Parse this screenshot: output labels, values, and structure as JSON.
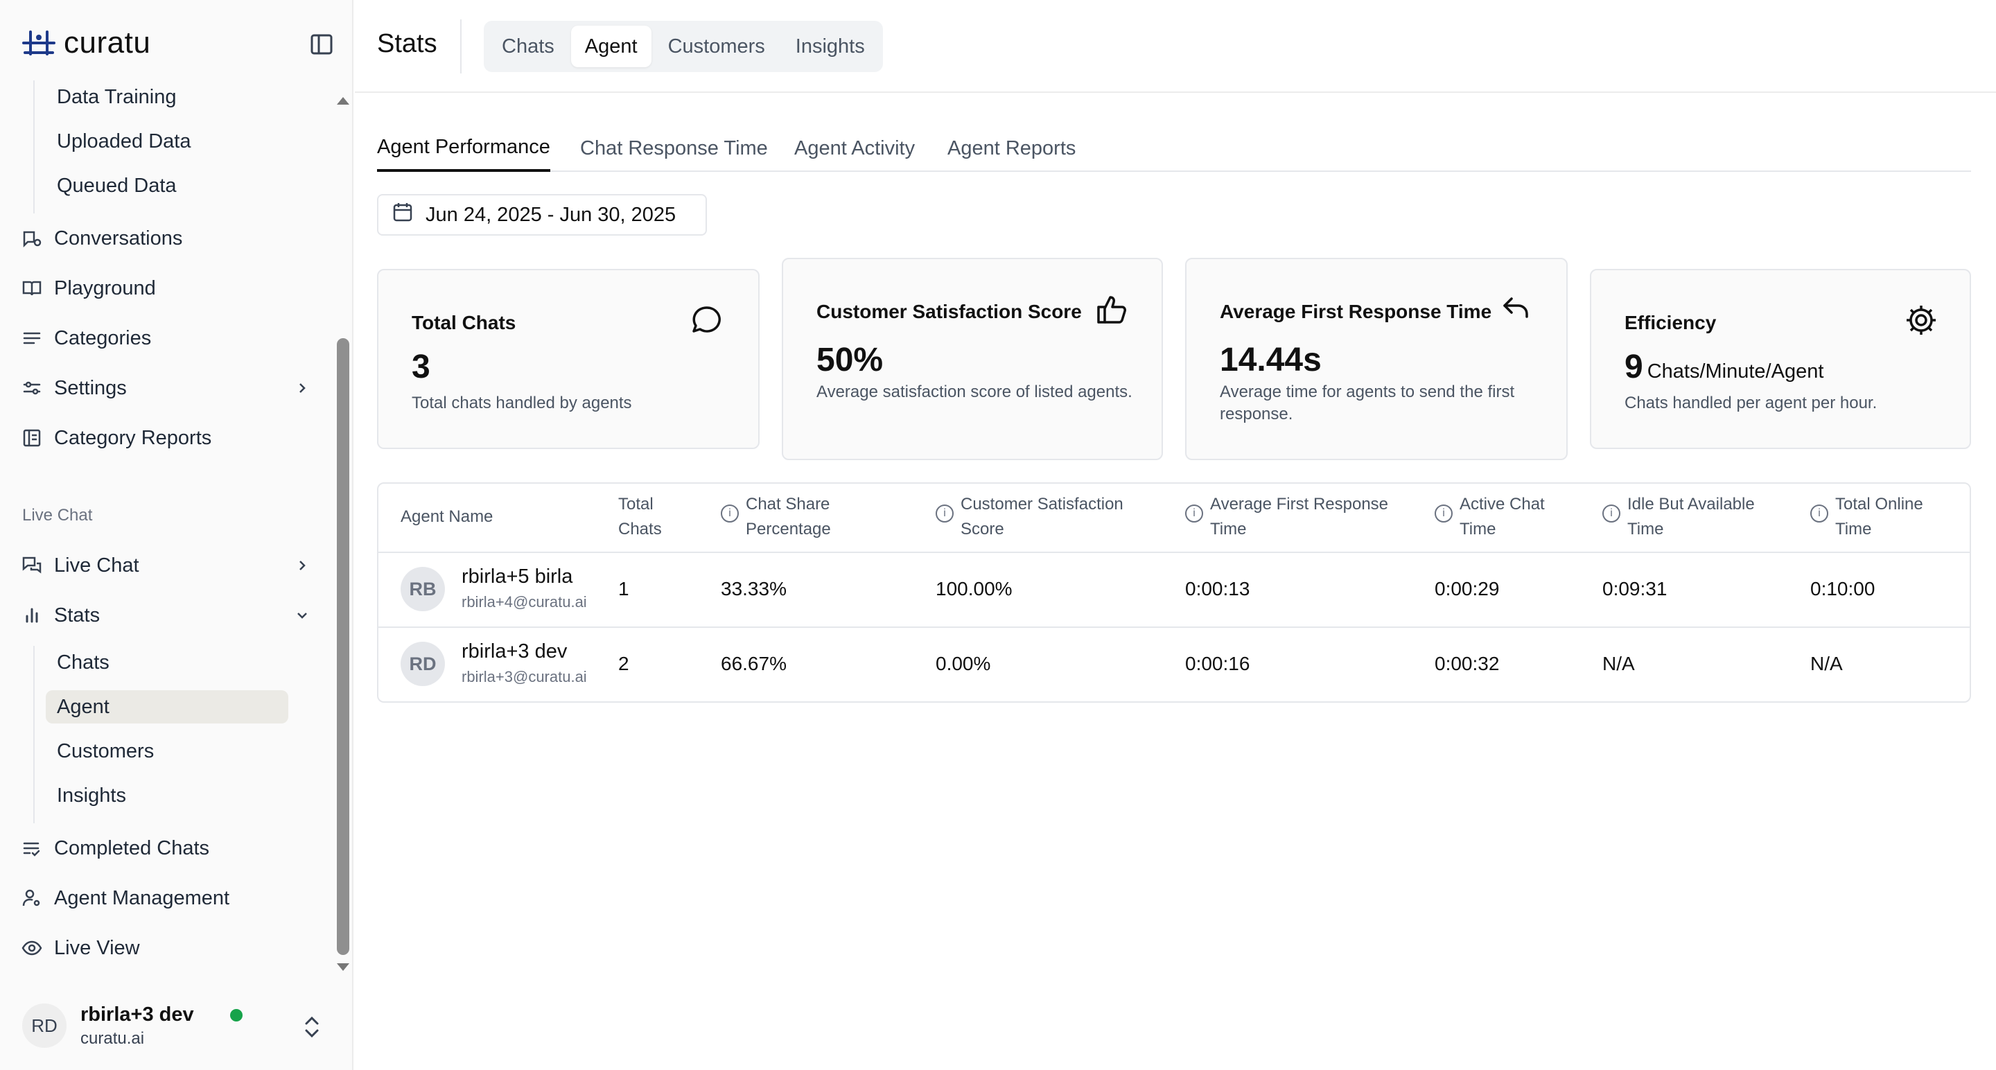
{
  "brand": {
    "name": "curatu"
  },
  "sidebar": {
    "sub_top": [
      "Data Training",
      "Uploaded Data",
      "Queued Data"
    ],
    "items_top": [
      {
        "label": "Conversations",
        "icon": "conversations-icon"
      },
      {
        "label": "Playground",
        "icon": "book-icon"
      },
      {
        "label": "Categories",
        "icon": "list-icon"
      },
      {
        "label": "Settings",
        "icon": "sliders-icon"
      },
      {
        "label": "Category Reports",
        "icon": "report-icon"
      }
    ],
    "section_live_chat": "Live Chat",
    "live_chat": {
      "label": "Live Chat"
    },
    "stats": {
      "label": "Stats"
    },
    "stats_sub": [
      "Chats",
      "Agent",
      "Customers",
      "Insights"
    ],
    "items_bottom": [
      {
        "label": "Completed Chats"
      },
      {
        "label": "Agent Management"
      },
      {
        "label": "Live View"
      }
    ],
    "user": {
      "initials": "RD",
      "name": "rbirla+3 dev",
      "org": "curatu.ai",
      "status_color": "#16a34a"
    }
  },
  "header": {
    "title": "Stats",
    "tabs": [
      "Chats",
      "Agent",
      "Customers",
      "Insights"
    ],
    "active_tab": "Agent"
  },
  "subtabs": [
    "Agent Performance",
    "Chat Response Time",
    "Agent Activity",
    "Agent Reports"
  ],
  "date_range": "Jun 24, 2025 - Jun 30, 2025",
  "cards": {
    "total_chats": {
      "title": "Total Chats",
      "value": "3",
      "desc": "Total chats handled by agents"
    },
    "csat": {
      "title": "Customer Satisfaction Score",
      "value": "50%",
      "desc": "Average satisfaction score of listed agents."
    },
    "afrt": {
      "title": "Average First Response Time",
      "value": "14.44s",
      "desc": "Average time for agents to send the first response."
    },
    "efficiency": {
      "title": "Efficiency",
      "value": "9",
      "unit": "Chats/Minute/Agent",
      "desc": "Chats handled per agent per hour."
    }
  },
  "table": {
    "headers": {
      "agent_name": "Agent Name",
      "total_chats_1": "Total",
      "total_chats_2": "Chats",
      "share_1": "Chat Share",
      "share_2": "Percentage",
      "csat_1": "Customer Satisfaction",
      "csat_2": "Score",
      "afrt_1": "Average First Response",
      "afrt_2": "Time",
      "active_1": "Active Chat",
      "active_2": "Time",
      "idle_1": "Idle But Available",
      "idle_2": "Time",
      "online_1": "Total Online",
      "online_2": "Time"
    },
    "rows": [
      {
        "initials": "RB",
        "name": "rbirla+5 birla",
        "email": "rbirla+4@curatu.ai",
        "total": "1",
        "share": "33.33%",
        "csat": "100.00%",
        "afrt": "0:00:13",
        "active": "0:00:29",
        "idle": "0:09:31",
        "online": "0:10:00"
      },
      {
        "initials": "RD",
        "name": "rbirla+3 dev",
        "email": "rbirla+3@curatu.ai",
        "total": "2",
        "share": "66.67%",
        "csat": "0.00%",
        "afrt": "0:00:16",
        "active": "0:00:32",
        "idle": "N/A",
        "online": "N/A"
      }
    ]
  },
  "colors": {
    "brand": "#1e3a8a",
    "online": "#16a34a",
    "active_bg": "#ebeae5"
  }
}
